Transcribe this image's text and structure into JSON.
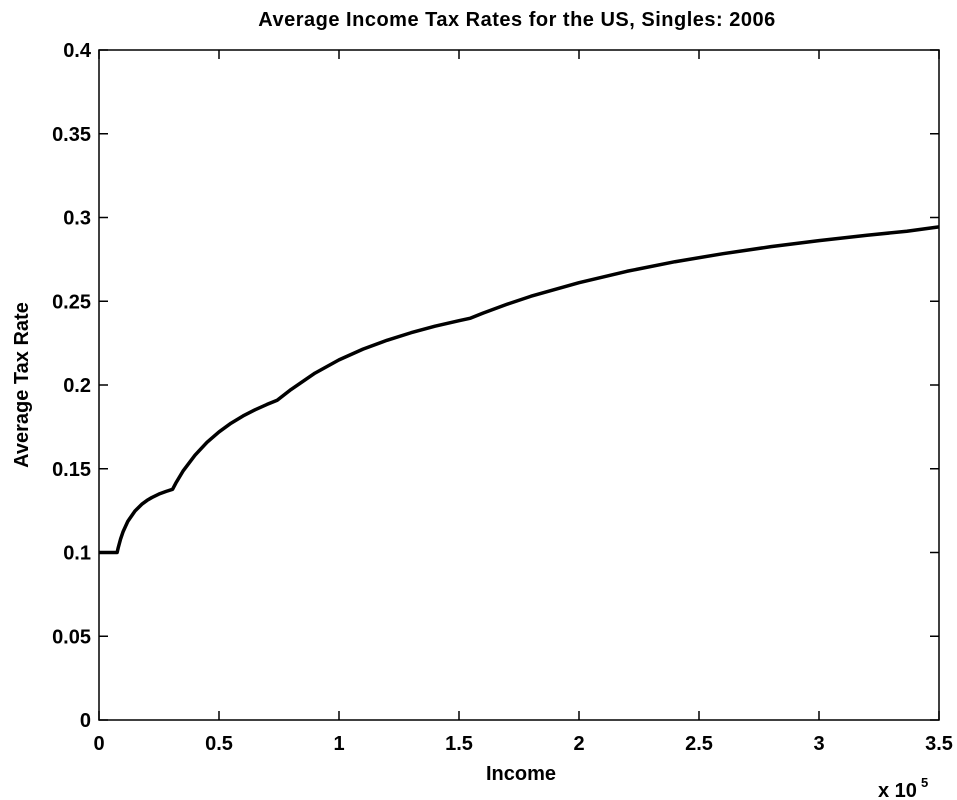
{
  "chart_data": {
    "type": "line",
    "title": "Average Income Tax Rates for the US, Singles: 2006",
    "xlabel": "Income",
    "ylabel": "Average Tax Rate",
    "x_multiplier_base": "x 10",
    "x_multiplier_exp": "5",
    "xlim": [
      0,
      3.5
    ],
    "ylim": [
      0,
      0.4
    ],
    "x_ticks": [
      0,
      0.5,
      1,
      1.5,
      2,
      2.5,
      3,
      3.5
    ],
    "x_tick_labels": [
      "0",
      "0.5",
      "1",
      "1.5",
      "2",
      "2.5",
      "3",
      "3.5"
    ],
    "y_ticks": [
      0,
      0.05,
      0.1,
      0.15,
      0.2,
      0.25,
      0.3,
      0.35,
      0.4
    ],
    "y_tick_labels": [
      "0",
      "0.05",
      "0.1",
      "0.15",
      "0.2",
      "0.25",
      "0.3",
      "0.35",
      "0.4"
    ],
    "grid": false,
    "line_color": "#000000",
    "series": [
      {
        "x": [
          0,
          0.02,
          0.05,
          0.0755,
          0.08,
          0.09,
          0.1,
          0.12,
          0.15,
          0.18,
          0.2,
          0.22,
          0.25,
          0.28,
          0.3065,
          0.32,
          0.35,
          0.4,
          0.45,
          0.5,
          0.55,
          0.6,
          0.65,
          0.7,
          0.7425,
          0.8,
          0.9,
          1.0,
          1.1,
          1.2,
          1.3,
          1.4,
          1.5,
          1.548,
          1.6,
          1.7,
          1.8,
          2.0,
          2.2,
          2.4,
          2.6,
          2.8,
          3.0,
          3.2,
          3.366,
          3.5
        ],
        "y": [
          0.1,
          0.1,
          0.1,
          0.1,
          0.1028,
          0.1081,
          0.1123,
          0.1186,
          0.1248,
          0.129,
          0.1311,
          0.1328,
          0.1349,
          0.1365,
          0.1377,
          0.1414,
          0.1486,
          0.1581,
          0.1658,
          0.172,
          0.1772,
          0.1815,
          0.1852,
          0.1884,
          0.1909,
          0.1973,
          0.2071,
          0.215,
          0.2214,
          0.2267,
          0.2312,
          0.2351,
          0.2384,
          0.2399,
          0.2429,
          0.2482,
          0.253,
          0.2611,
          0.2679,
          0.2736,
          0.2784,
          0.2826,
          0.2862,
          0.2894,
          0.2918,
          0.2944
        ]
      }
    ]
  }
}
